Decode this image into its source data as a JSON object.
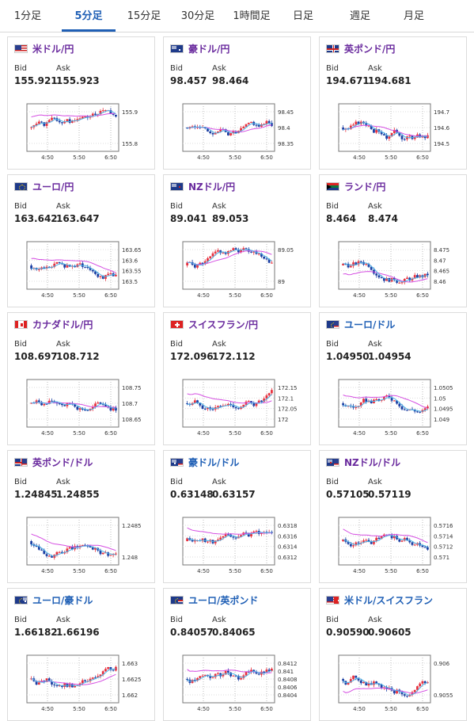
{
  "tabs": [
    {
      "label": "1分足",
      "active": false
    },
    {
      "label": "5分足",
      "active": true
    },
    {
      "label": "15分足",
      "active": false
    },
    {
      "label": "30分足",
      "active": false
    },
    {
      "label": "1時間足",
      "active": false
    },
    {
      "label": "日足",
      "active": false
    },
    {
      "label": "週足",
      "active": false
    },
    {
      "label": "月足",
      "active": false
    }
  ],
  "labels": {
    "bid": "Bid",
    "ask": "Ask"
  },
  "colors": {
    "accent": "#1f5fb5",
    "up": "#e8323f",
    "down": "#1c3fa3",
    "ma_long": "#d54fe2",
    "ma_short": "#4db3e6"
  },
  "cards": [
    {
      "flag": "us",
      "name": "米ドル/円",
      "bid": "155.921",
      "ask": "155.923",
      "yticks": [
        "155.9",
        "155.8"
      ],
      "xticks": [
        "4:50",
        "5:50",
        "6:50"
      ],
      "seed": 1,
      "ma": "down"
    },
    {
      "flag": "au",
      "name": "豪ドル/円",
      "bid": "98.457",
      "ask": "98.464",
      "yticks": [
        "98.45",
        "98.4",
        "98.35"
      ],
      "xticks": [
        "4:50",
        "5:50",
        "6:50"
      ],
      "seed": 2,
      "ma": "flat"
    },
    {
      "flag": "gb",
      "name": "英ポンド/円",
      "bid": "194.671",
      "ask": "194.681",
      "yticks": [
        "194.7",
        "194.6",
        "194.5"
      ],
      "xticks": [
        "4:50",
        "5:50",
        "6:50"
      ],
      "seed": 3,
      "ma": "flat"
    },
    {
      "flag": "eu",
      "name": "ユーロ/円",
      "bid": "163.642",
      "ask": "163.647",
      "yticks": [
        "163.65",
        "163.6",
        "163.55",
        "163.5"
      ],
      "xticks": [
        "4:50",
        "5:50",
        "6:50"
      ],
      "seed": 4,
      "ma": "down"
    },
    {
      "flag": "nz",
      "name": "NZドル/円",
      "bid": "89.041",
      "ask": "89.053",
      "yticks": [
        "89.05",
        "89"
      ],
      "xticks": [
        "4:50",
        "5:50",
        "6:50"
      ],
      "seed": 5,
      "ma": "flat"
    },
    {
      "flag": "za",
      "name": "ランド/円",
      "bid": "8.464",
      "ask": "8.474",
      "yticks": [
        "8.475",
        "8.47",
        "8.465",
        "8.46"
      ],
      "xticks": [
        "4:50",
        "5:50",
        "6:50"
      ],
      "seed": 6,
      "ma": "up"
    },
    {
      "flag": "ca",
      "name": "カナダドル/円",
      "bid": "108.697",
      "ask": "108.712",
      "yticks": [
        "108.75",
        "108.7",
        "108.65"
      ],
      "xticks": [
        "4:50",
        "5:50",
        "6:50"
      ],
      "seed": 7,
      "ma": "flat"
    },
    {
      "flag": "ch",
      "name": "スイスフラン/円",
      "bid": "172.096",
      "ask": "172.112",
      "yticks": [
        "172.15",
        "172.1",
        "172.05",
        "172"
      ],
      "xticks": [
        "4:50",
        "5:50",
        "6:50"
      ],
      "seed": 8,
      "ma": "down"
    },
    {
      "flag": "euus",
      "name": "ユーロ/ドル",
      "bid": "1.04950",
      "ask": "1.04954",
      "yticks": [
        "1.0505",
        "1.05",
        "1.0495",
        "1.049"
      ],
      "xticks": [
        "4:50",
        "5:50",
        "6:50"
      ],
      "seed": 9,
      "ma": "down"
    },
    {
      "flag": "gbus",
      "name": "英ポンド/ドル",
      "bid": "1.24845",
      "ask": "1.24855",
      "yticks": [
        "1.2485",
        "1.248"
      ],
      "xticks": [
        "4:50",
        "5:50",
        "6:50"
      ],
      "seed": 10,
      "ma": "down"
    },
    {
      "flag": "auus",
      "name": "豪ドル/ドル",
      "bid": "0.63148",
      "ask": "0.63157",
      "yticks": [
        "0.6318",
        "0.6316",
        "0.6314",
        "0.6312"
      ],
      "xticks": [
        "4:50",
        "5:50",
        "6:50"
      ],
      "seed": 11,
      "ma": "down"
    },
    {
      "flag": "nzus",
      "name": "NZドル/ドル",
      "bid": "0.57105",
      "ask": "0.57119",
      "yticks": [
        "0.5716",
        "0.5714",
        "0.5712",
        "0.571"
      ],
      "xticks": [
        "4:50",
        "5:50",
        "6:50"
      ],
      "seed": 12,
      "ma": "down"
    },
    {
      "flag": "euau",
      "name": "ユーロ/豪ドル",
      "bid": "1.66182",
      "ask": "1.66196",
      "yticks": [
        "1.663",
        "1.6625",
        "1.662"
      ],
      "xticks": [
        "4:50",
        "5:50",
        "6:50"
      ],
      "seed": 13,
      "ma": "flat"
    },
    {
      "flag": "eugb",
      "name": "ユーロ/英ポンド",
      "bid": "0.84057",
      "ask": "0.84065",
      "yticks": [
        "0.8412",
        "0.841",
        "0.8408",
        "0.8406",
        "0.8404"
      ],
      "xticks": [
        "4:50",
        "5:50",
        "6:50"
      ],
      "seed": 14,
      "ma": "down"
    },
    {
      "flag": "usch",
      "name": "米ドル/スイスフラン",
      "bid": "0.90590",
      "ask": "0.90605",
      "yticks": [
        "0.906",
        "0.9055"
      ],
      "xticks": [
        "4:50",
        "5:50",
        "6:50"
      ],
      "seed": 15,
      "ma": "up"
    }
  ]
}
